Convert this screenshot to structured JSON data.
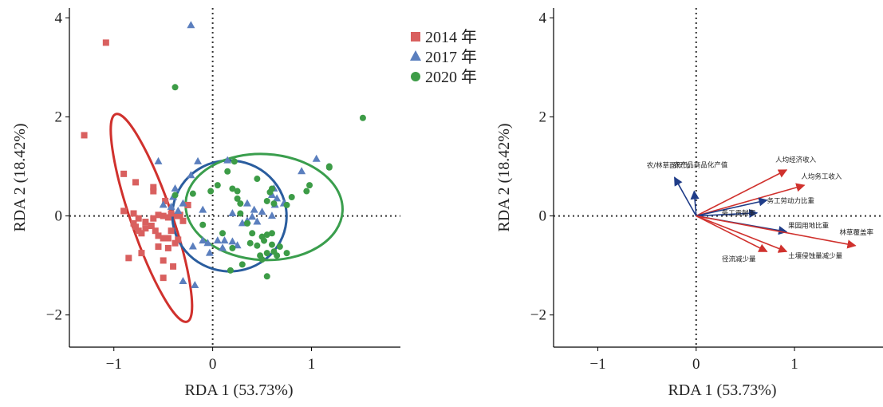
{
  "chart_data": [
    {
      "type": "scatter",
      "xlabel": "RDA 1 (53.73%)",
      "ylabel": "RDA 2 (18.42%)",
      "xlim": [
        -1.45,
        1.9
      ],
      "ylim": [
        -2.65,
        4.2
      ],
      "xticks": [
        -1,
        0,
        1
      ],
      "yticks": [
        -2,
        0,
        2,
        4
      ],
      "tick_labels_x": [
        "−1",
        "0",
        "1"
      ],
      "tick_labels_y": [
        "−2",
        "0",
        "2",
        "4"
      ],
      "grid": false,
      "reference_lines": "dotted lines at x=0 and y=0",
      "legend_position": "outside-top-right",
      "series": [
        {
          "name": "2014 年",
          "marker": "square",
          "color": "#d9605f",
          "points": [
            [
              -1.08,
              3.5
            ],
            [
              -1.3,
              1.63
            ],
            [
              -0.9,
              0.85
            ],
            [
              -0.78,
              0.68
            ],
            [
              -0.6,
              0.58
            ],
            [
              -0.6,
              0.5
            ],
            [
              -0.48,
              0.3
            ],
            [
              -0.9,
              0.1
            ],
            [
              -0.8,
              0.05
            ],
            [
              -0.75,
              -0.05
            ],
            [
              -0.68,
              -0.12
            ],
            [
              -0.6,
              -0.05
            ],
            [
              -0.55,
              0.02
            ],
            [
              -0.5,
              0.0
            ],
            [
              -0.45,
              -0.03
            ],
            [
              -0.42,
              0.05
            ],
            [
              -0.36,
              0.0
            ],
            [
              -0.8,
              -0.15
            ],
            [
              -0.78,
              -0.22
            ],
            [
              -0.75,
              -0.3
            ],
            [
              -0.72,
              -0.35
            ],
            [
              -0.68,
              -0.25
            ],
            [
              -0.62,
              -0.2
            ],
            [
              -0.58,
              -0.3
            ],
            [
              -0.55,
              -0.4
            ],
            [
              -0.5,
              -0.45
            ],
            [
              -0.45,
              -0.45
            ],
            [
              -0.42,
              -0.3
            ],
            [
              -0.38,
              -0.55
            ],
            [
              -0.35,
              -0.48
            ],
            [
              -0.55,
              -0.62
            ],
            [
              -0.45,
              -0.65
            ],
            [
              -0.72,
              -0.75
            ],
            [
              -0.85,
              -0.85
            ],
            [
              -0.5,
              -0.9
            ],
            [
              -0.4,
              -1.02
            ],
            [
              -0.5,
              -1.25
            ],
            [
              -0.25,
              0.22
            ],
            [
              -0.3,
              -0.1
            ],
            [
              -0.33,
              0.02
            ]
          ]
        },
        {
          "name": "2017 年",
          "marker": "triangle",
          "color": "#5b7fbe",
          "points": [
            [
              -0.22,
              3.85
            ],
            [
              -0.55,
              1.1
            ],
            [
              -0.15,
              1.1
            ],
            [
              -0.22,
              0.82
            ],
            [
              -0.38,
              0.55
            ],
            [
              -0.4,
              0.38
            ],
            [
              -0.42,
              0.18
            ],
            [
              -0.5,
              0.22
            ],
            [
              -0.3,
              0.25
            ],
            [
              -0.35,
              0.1
            ],
            [
              -0.1,
              0.12
            ],
            [
              0.15,
              1.12
            ],
            [
              0.62,
              0.55
            ],
            [
              0.6,
              0.42
            ],
            [
              0.65,
              0.35
            ],
            [
              0.63,
              0.22
            ],
            [
              0.72,
              0.25
            ],
            [
              1.05,
              1.15
            ],
            [
              0.9,
              0.9
            ],
            [
              0.35,
              0.25
            ],
            [
              0.42,
              0.12
            ],
            [
              0.2,
              0.05
            ],
            [
              0.4,
              -0.02
            ],
            [
              0.35,
              -0.1
            ],
            [
              0.45,
              -0.12
            ],
            [
              0.3,
              -0.15
            ],
            [
              -0.1,
              -0.5
            ],
            [
              -0.05,
              -0.55
            ],
            [
              0.05,
              -0.5
            ],
            [
              0.12,
              -0.5
            ],
            [
              0.2,
              -0.52
            ],
            [
              0.25,
              -0.6
            ],
            [
              0.1,
              -0.65
            ],
            [
              -0.03,
              -0.75
            ],
            [
              -0.2,
              -0.62
            ],
            [
              -0.3,
              -1.32
            ],
            [
              -0.18,
              -1.4
            ],
            [
              0.6,
              0.0
            ],
            [
              0.5,
              0.08
            ]
          ]
        },
        {
          "name": "2020 年",
          "marker": "circle",
          "color": "#3d9c47",
          "points": [
            [
              -0.38,
              2.6
            ],
            [
              1.52,
              1.98
            ],
            [
              0.22,
              1.1
            ],
            [
              1.18,
              1.0
            ],
            [
              1.18,
              0.98
            ],
            [
              0.98,
              0.62
            ],
            [
              0.95,
              0.5
            ],
            [
              0.15,
              0.9
            ],
            [
              0.45,
              0.75
            ],
            [
              0.6,
              0.55
            ],
            [
              0.58,
              0.48
            ],
            [
              0.8,
              0.38
            ],
            [
              0.2,
              0.55
            ],
            [
              0.25,
              0.5
            ],
            [
              0.05,
              0.62
            ],
            [
              -0.2,
              0.45
            ],
            [
              -0.38,
              0.42
            ],
            [
              -0.02,
              0.5
            ],
            [
              0.25,
              0.35
            ],
            [
              0.28,
              0.25
            ],
            [
              0.55,
              0.3
            ],
            [
              0.62,
              0.25
            ],
            [
              0.75,
              0.22
            ],
            [
              0.28,
              0.05
            ],
            [
              0.35,
              -0.15
            ],
            [
              0.4,
              -0.35
            ],
            [
              0.5,
              -0.42
            ],
            [
              0.55,
              -0.38
            ],
            [
              0.6,
              -0.35
            ],
            [
              0.52,
              -0.5
            ],
            [
              0.6,
              -0.58
            ],
            [
              0.62,
              -0.72
            ],
            [
              0.55,
              -0.75
            ],
            [
              0.48,
              -0.8
            ],
            [
              0.65,
              -0.8
            ],
            [
              0.75,
              -0.75
            ],
            [
              0.5,
              -0.88
            ],
            [
              0.2,
              -0.65
            ],
            [
              0.3,
              -0.98
            ],
            [
              0.18,
              -1.1
            ],
            [
              0.55,
              -1.22
            ],
            [
              0.68,
              -0.62
            ],
            [
              0.45,
              -0.6
            ],
            [
              0.1,
              -0.35
            ],
            [
              -0.1,
              -0.18
            ],
            [
              0.38,
              -0.55
            ]
          ]
        }
      ],
      "ellipses": [
        {
          "series": "2014 年",
          "color": "#d0312d",
          "center": [
            -0.62,
            -0.04
          ],
          "rx": 1.11,
          "ry": 0.415,
          "rotation_deg": 71
        },
        {
          "series": "2017 年",
          "color": "#2a5d9e",
          "center": [
            0.17,
            0.0
          ],
          "rx": 0.578,
          "ry": 1.12,
          "rotation_deg": 6
        },
        {
          "series": "2020 年",
          "color": "#3a9e4d",
          "center": [
            0.52,
            0.18
          ],
          "rx": 0.795,
          "ry": 1.07,
          "rotation_deg": 3
        }
      ]
    },
    {
      "type": "biplot",
      "xlabel": "RDA 1 (53.73%)",
      "ylabel": "RDA 2 (18.42%)",
      "xlim": [
        -1.45,
        1.9
      ],
      "ylim": [
        -2.65,
        4.2
      ],
      "xticks": [
        -1,
        0,
        1
      ],
      "yticks": [
        -2,
        0,
        2,
        4
      ],
      "tick_labels_x": [
        "−1",
        "0",
        "1"
      ],
      "tick_labels_y": [
        "−2",
        "0",
        "2",
        "4"
      ],
      "grid": false,
      "reference_lines": "dotted lines at x=0 and y=0",
      "vectors": [
        {
          "label": "农/林草面积比",
          "x": -0.22,
          "y": 0.78,
          "color": "#1f3c88"
        },
        {
          "label": "农产品商品化产值",
          "x": -0.02,
          "y": 0.5,
          "color": "#1f3c88"
        },
        {
          "label": "人均经济收入",
          "x": 0.92,
          "y": 0.93,
          "color": "#d0312d"
        },
        {
          "label": "人均务工收入",
          "x": 1.1,
          "y": 0.62,
          "color": "#d0312d"
        },
        {
          "label": "务工劳动力比重",
          "x": 0.72,
          "y": 0.32,
          "color": "#1f3c88"
        },
        {
          "label": "务工贡献率",
          "x": 0.62,
          "y": 0.06,
          "color": "#1f3c88"
        },
        {
          "label": "果园用地比重",
          "x": 0.92,
          "y": -0.32,
          "color": "#1f3c88"
        },
        {
          "label": "林草覆盖率",
          "x": 1.62,
          "y": -0.6,
          "color": "#d0312d"
        },
        {
          "label": "土壤侵蚀量减少量",
          "x": 0.92,
          "y": -0.72,
          "color": "#d0312d"
        },
        {
          "label": "径流减少量",
          "x": 0.72,
          "y": -0.72,
          "color": "#d0312d"
        }
      ]
    }
  ]
}
